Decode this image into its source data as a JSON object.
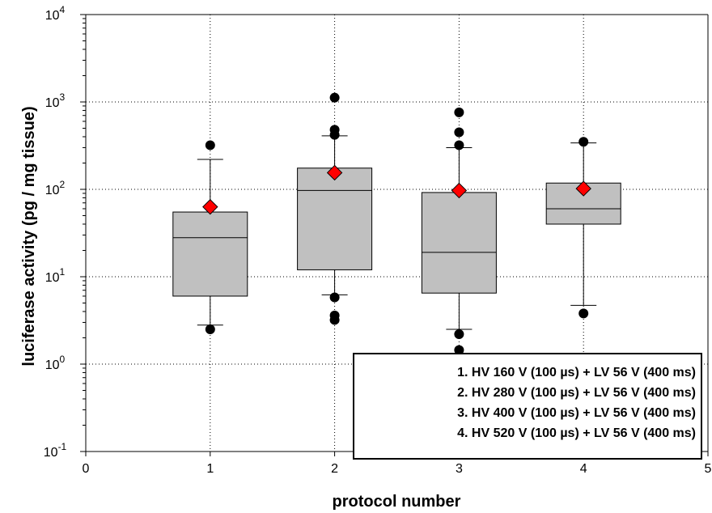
{
  "chart_data": {
    "type": "box",
    "xlabel": "protocol number",
    "ylabel": "luciferase activity (pg / mg tissue)",
    "xlim": [
      0,
      5
    ],
    "xticks": [
      0,
      1,
      2,
      3,
      4,
      5
    ],
    "ylim": [
      0.1,
      10000
    ],
    "yscale": "log",
    "yticks": [
      {
        "value": 0.1,
        "base": "10",
        "exp": "-1"
      },
      {
        "value": 1,
        "base": "10",
        "exp": "0"
      },
      {
        "value": 10,
        "base": "10",
        "exp": "1"
      },
      {
        "value": 100,
        "base": "10",
        "exp": "2"
      },
      {
        "value": 1000,
        "base": "10",
        "exp": "3"
      },
      {
        "value": 10000,
        "base": "10",
        "exp": "4"
      }
    ],
    "grid": true,
    "box_color": "#c0c0c0",
    "mean_color": "#ff0000",
    "boxes": [
      {
        "x": 1,
        "whisker_low": 2.8,
        "q1": 6.0,
        "median": 28,
        "q3": 55,
        "whisker_high": 220,
        "mean": 63,
        "outliers": [
          2.5,
          320
        ]
      },
      {
        "x": 2,
        "whisker_low": 6.2,
        "q1": 12,
        "median": 97,
        "q3": 175,
        "whisker_high": 410,
        "mean": 155,
        "outliers": [
          3.2,
          3.6,
          5.8,
          420,
          480,
          1120
        ]
      },
      {
        "x": 3,
        "whisker_low": 2.5,
        "q1": 6.5,
        "median": 19,
        "q3": 92,
        "whisker_high": 300,
        "mean": 97,
        "outliers": [
          1.45,
          2.2,
          320,
          450,
          760
        ]
      },
      {
        "x": 4,
        "whisker_low": 4.7,
        "q1": 40,
        "median": 60,
        "q3": 118,
        "whisker_high": 340,
        "mean": 102,
        "outliers": [
          3.8,
          350
        ]
      }
    ],
    "legend": {
      "position": "bottom-right",
      "entries": [
        "1. HV 160 V (100 µs) + LV 56 V (400 ms)",
        "2. HV 280 V (100 µs) + LV 56 V (400 ms)",
        "3. HV 400 V (100 µs) + LV 56 V (400 ms)",
        "4. HV 520 V (100 µs) + LV 56 V (400 ms)"
      ]
    }
  }
}
